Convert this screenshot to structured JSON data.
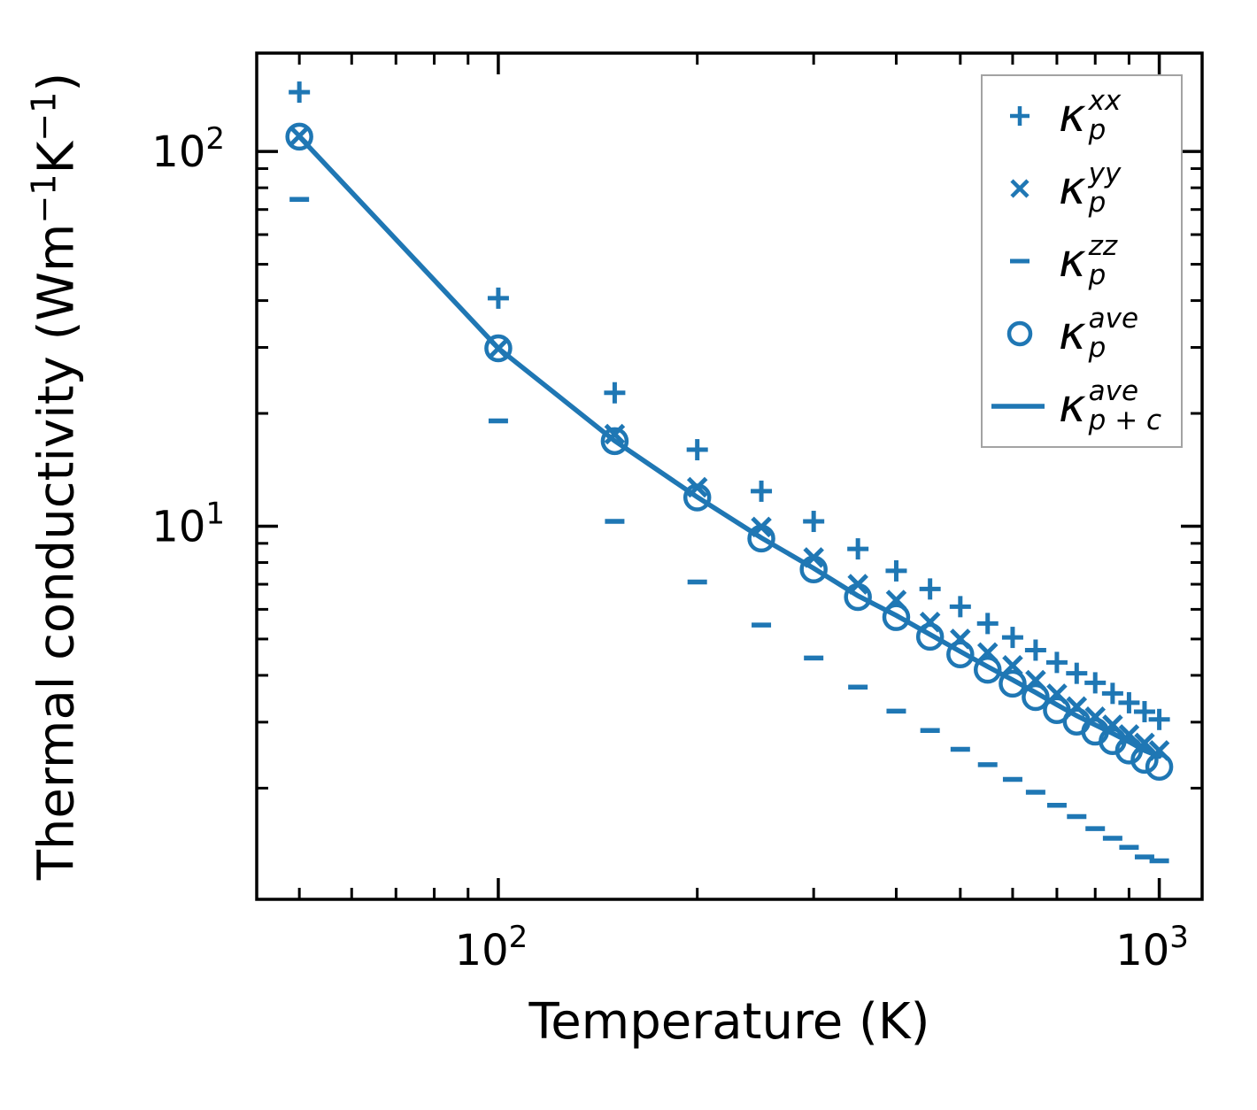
{
  "figure": {
    "background": "#ffffff"
  },
  "x_axis_label": {
    "text": "Temperature (K)"
  },
  "y_axis_label": {
    "pre": "Thermal conductivity (Wm",
    "sup1": "−1",
    "mid": "K",
    "sup2": "−1",
    "post": ")"
  },
  "legend": {
    "border_color": "#a3a3a3",
    "items": [
      {
        "symbol": "κ",
        "sup": "xx",
        "sub": "p"
      },
      {
        "symbol": "κ",
        "sup": "yy",
        "sub": "p"
      },
      {
        "symbol": "κ",
        "sup": "zz",
        "sub": "p"
      },
      {
        "symbol": "κ",
        "sup": "ave",
        "sub": "p"
      },
      {
        "symbol": "κ",
        "sup": "ave",
        "sub": "p + c"
      }
    ]
  },
  "chart_data": {
    "type": "scatter",
    "title": "",
    "xlabel": "Temperature (K)",
    "ylabel": "Thermal conductivity (Wm−1K−1)",
    "x_scale": "log",
    "y_scale": "log",
    "grid": false,
    "legend_position": "upper right",
    "color": "#1f77b4",
    "x_axis": {
      "lim": [
        43.1,
        1161
      ],
      "ticks": [
        {
          "value": 100,
          "base": "10",
          "exponent": "2"
        },
        {
          "value": 1000,
          "base": "10",
          "exponent": "3"
        }
      ]
    },
    "y_axis": {
      "lim": [
        1.01,
        183
      ],
      "ticks": [
        {
          "value": 10,
          "base": "10",
          "exponent": "1"
        },
        {
          "value": 100,
          "base": "10",
          "exponent": "2"
        }
      ]
    },
    "temperatures": [
      50,
      100,
      150,
      200,
      250,
      300,
      350,
      400,
      450,
      500,
      550,
      600,
      650,
      700,
      750,
      800,
      850,
      900,
      950,
      1000
    ],
    "series": [
      {
        "id": "kxx",
        "label": "κ_p^xx",
        "marker": "plus",
        "values": [
          144,
          40.6,
          22.7,
          16.0,
          12.4,
          10.3,
          8.7,
          7.6,
          6.8,
          6.1,
          5.5,
          5.05,
          4.67,
          4.33,
          4.05,
          3.82,
          3.58,
          3.38,
          3.2,
          3.05
        ]
      },
      {
        "id": "kyy",
        "label": "κ_p^yy",
        "marker": "x",
        "values": [
          110,
          29.8,
          17.6,
          12.7,
          9.95,
          8.25,
          7.0,
          6.35,
          5.55,
          5.0,
          4.6,
          4.25,
          3.88,
          3.57,
          3.3,
          3.1,
          2.95,
          2.78,
          2.64,
          2.52
        ]
      },
      {
        "id": "kzz",
        "label": "κ_p^zz",
        "marker": "minus",
        "values": [
          74.5,
          19.1,
          10.3,
          7.1,
          5.45,
          4.45,
          3.72,
          3.21,
          2.85,
          2.54,
          2.31,
          2.11,
          1.95,
          1.8,
          1.68,
          1.56,
          1.47,
          1.39,
          1.31,
          1.28
        ]
      },
      {
        "id": "kave",
        "label": "κ_p^ave",
        "marker": "circle",
        "values": [
          109.5,
          29.83,
          16.87,
          11.93,
          9.27,
          7.67,
          6.47,
          5.72,
          5.07,
          4.55,
          4.14,
          3.8,
          3.5,
          3.23,
          3.01,
          2.83,
          2.67,
          2.52,
          2.38,
          2.28
        ]
      },
      {
        "id": "kpc",
        "label": "κ_(p+c)^ave",
        "marker": "line",
        "values": [
          109.5,
          29.85,
          16.9,
          11.96,
          9.31,
          7.72,
          6.52,
          5.78,
          5.14,
          4.63,
          4.22,
          3.89,
          3.6,
          3.34,
          3.12,
          2.95,
          2.8,
          2.66,
          2.52,
          2.43
        ]
      }
    ]
  }
}
